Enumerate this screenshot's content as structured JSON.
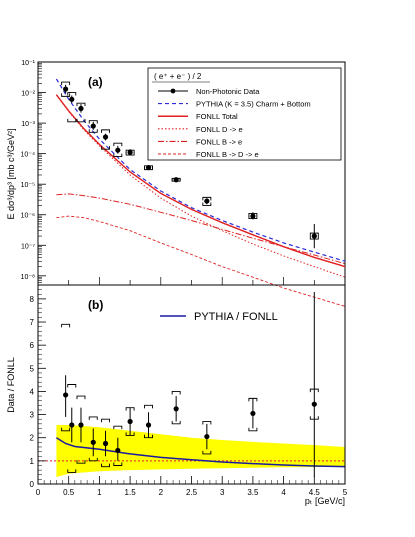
{
  "chart_data": [
    {
      "type": "scatter",
      "panel_label": "(a)",
      "ylabel": "E dσ³/dp³ [mb c³/GeV²]",
      "xlim": [
        0,
        5
      ],
      "ylim_log10": [
        -8.3,
        -1
      ],
      "y_scale": "log",
      "y_ticks": [
        "10⁻⁸",
        "10⁻⁷",
        "10⁻⁶",
        "10⁻⁵",
        "10⁻⁴",
        "10⁻³",
        "10⁻²",
        "10⁻¹"
      ],
      "legend_title": "( e⁺ + e⁻ ) / 2",
      "legend_position": "top-right",
      "legend": [
        {
          "label": "Non-Photonic Data",
          "style": "marker",
          "color": "#000000"
        },
        {
          "label": "PYTHIA (K = 3.5) Charm + Bottom",
          "style": "dashed",
          "color": "#2a2ad8"
        },
        {
          "label": "FONLL Total",
          "style": "solid",
          "color": "#e02020"
        },
        {
          "label": "FONLL D -> e",
          "style": "dotted",
          "color": "#e02020"
        },
        {
          "label": "FONLL B -> e",
          "style": "dashdot",
          "color": "#e02020"
        },
        {
          "label": "FONLL B -> D -> e",
          "style": "dashed-thin",
          "color": "#e02020"
        }
      ],
      "data_points": [
        {
          "x": 0.45,
          "y": 0.013,
          "ylo": 0.0095,
          "yhi": 0.018,
          "sys_lo": 0.0075,
          "sys_hi": 0.022
        },
        {
          "x": 0.55,
          "y": 0.006,
          "ylo": 0.0045,
          "yhi": 0.008,
          "sys_lo": 0.0011,
          "sys_hi": 0.01
        },
        {
          "x": 0.7,
          "y": 0.003,
          "ylo": 0.0022,
          "yhi": 0.0042,
          "sys_lo": 0.0011,
          "sys_hi": 0.0045
        },
        {
          "x": 0.9,
          "y": 0.0008,
          "ylo": 0.0006,
          "yhi": 0.0011,
          "sys_lo": 0.0005,
          "sys_hi": 0.0012
        },
        {
          "x": 1.1,
          "y": 0.00035,
          "ylo": 0.00027,
          "yhi": 0.00045,
          "sys_lo": 0.00014,
          "sys_hi": 0.0006
        },
        {
          "x": 1.3,
          "y": 0.00013,
          "ylo": 0.0001,
          "yhi": 0.00018,
          "sys_lo": 8e-05,
          "sys_hi": 0.00022
        },
        {
          "x": 1.5,
          "y": 0.00011,
          "ylo": 9e-05,
          "yhi": 0.00014,
          "sys_lo": 9e-05,
          "sys_hi": 0.00013
        },
        {
          "x": 1.8,
          "y": 3.5e-05,
          "ylo": 2.9e-05,
          "yhi": 4.2e-05,
          "sys_lo": 3e-05,
          "sys_hi": 4e-05
        },
        {
          "x": 2.25,
          "y": 1.4e-05,
          "ylo": 1.2e-05,
          "yhi": 1.6e-05,
          "sys_lo": 1.25e-05,
          "sys_hi": 1.55e-05
        },
        {
          "x": 2.75,
          "y": 2.8e-06,
          "ylo": 2.2e-06,
          "yhi": 3.5e-06,
          "sys_lo": 2e-06,
          "sys_hi": 3.7e-06
        },
        {
          "x": 3.5,
          "y": 9e-07,
          "ylo": 7e-07,
          "yhi": 1.2e-06,
          "sys_lo": 7.5e-07,
          "sys_hi": 1.1e-06
        },
        {
          "x": 4.5,
          "y": 2e-07,
          "ylo": 8e-08,
          "yhi": 5e-07,
          "sys_lo": 1.6e-07,
          "sys_hi": 2.5e-07
        }
      ],
      "curves": [
        {
          "name": "PYTHIA (K = 3.5) Charm + Bottom",
          "color": "#2a2ad8",
          "dash": "4,3",
          "width": 1.2,
          "x": [
            0.3,
            0.5,
            0.75,
            1,
            1.5,
            2,
            2.5,
            3,
            3.5,
            4,
            4.5,
            5
          ],
          "y": [
            0.028,
            0.006,
            0.0012,
            0.0003,
            3e-05,
            6e-06,
            1.7e-06,
            6.5e-07,
            2.7e-07,
            1.2e-07,
            6e-08,
            3e-08
          ]
        },
        {
          "name": "FONLL Total",
          "color": "#e02020",
          "dash": "",
          "width": 1.4,
          "x": [
            0.3,
            0.5,
            0.75,
            1,
            1.5,
            2,
            2.5,
            3,
            3.5,
            4,
            4.5,
            5
          ],
          "y": [
            0.0085,
            0.0025,
            0.00065,
            0.0002,
            2.5e-05,
            5e-06,
            1.5e-06,
            5.5e-07,
            2.2e-07,
            9e-08,
            4e-08,
            2e-08
          ]
        },
        {
          "name": "FONLL D -> e",
          "color": "#e02020",
          "dash": "1.5,2",
          "width": 1,
          "x": [
            0.3,
            0.5,
            0.75,
            1,
            1.5,
            2,
            2.5,
            3,
            3.5,
            4,
            4.5,
            5
          ],
          "y": [
            0.0083,
            0.0024,
            0.0006,
            0.00018,
            2e-05,
            3.5e-06,
            9e-07,
            3e-07,
            1.1e-07,
            4.5e-08,
            2e-08,
            9e-09
          ]
        },
        {
          "name": "FONLL B -> e",
          "color": "#e02020",
          "dash": "6,2,1.5,2",
          "width": 1,
          "x": [
            0.3,
            0.5,
            0.75,
            1,
            1.5,
            2,
            2.5,
            3,
            3.5,
            4,
            4.5,
            5
          ],
          "y": [
            4.5e-06,
            4.8e-06,
            4.2e-06,
            3.5e-06,
            2.2e-06,
            1.2e-06,
            6.5e-07,
            3.3e-07,
            1.7e-07,
            9e-08,
            4.8e-08,
            2.5e-08
          ]
        },
        {
          "name": "FONLL B -> D -> e",
          "color": "#e02020",
          "dash": "3,2",
          "width": 0.9,
          "x": [
            0.3,
            0.5,
            0.75,
            1,
            1.5,
            2,
            2.5,
            3,
            3.5,
            4,
            4.5,
            5
          ],
          "y": [
            8e-07,
            9e-07,
            8e-07,
            6e-07,
            3e-07,
            1.2e-07,
            5e-08,
            2e-08,
            9e-09,
            4e-09,
            2e-09,
            1e-09
          ]
        }
      ]
    },
    {
      "type": "scatter",
      "panel_label": "(b)",
      "xlabel": "pₜ [GeV/c]",
      "ylabel": "Data / FONLL",
      "xlim": [
        0,
        5
      ],
      "ylim": [
        0,
        8.6
      ],
      "x_ticks": [
        "0",
        "0.5",
        "1",
        "1.5",
        "2",
        "2.5",
        "3",
        "3.5",
        "4",
        "4.5",
        "5"
      ],
      "y_ticks": [
        "0",
        "1",
        "2",
        "3",
        "4",
        "5",
        "6",
        "7",
        "8"
      ],
      "legend_position": "top-right",
      "legend": [
        {
          "label": "PYTHIA / FONLL",
          "style": "solid",
          "color": "#1a1aa0"
        }
      ],
      "reference_line": {
        "y": 1,
        "color": "#e02020"
      },
      "band": {
        "color": "#ffff00",
        "x": [
          0.3,
          0.5,
          1,
          1.5,
          2,
          2.5,
          3,
          3.5,
          4,
          4.5,
          5
        ],
        "ylo": [
          0.3,
          0.45,
          0.55,
          0.6,
          0.63,
          0.66,
          0.68,
          0.7,
          0.72,
          0.73,
          0.75
        ],
        "yhi": [
          2.55,
          2.55,
          2.45,
          2.3,
          2.15,
          2.0,
          1.9,
          1.82,
          1.75,
          1.68,
          1.6
        ]
      },
      "pythia_over_fonll": {
        "color": "#1a1aa0",
        "x": [
          0.3,
          0.45,
          0.6,
          1,
          1.5,
          2,
          2.5,
          3,
          3.5,
          4,
          4.5,
          5
        ],
        "y": [
          2.0,
          1.75,
          1.62,
          1.5,
          1.3,
          1.15,
          1.05,
          0.95,
          0.88,
          0.82,
          0.78,
          0.75
        ]
      },
      "data_points": [
        {
          "x": 0.45,
          "y": 3.85,
          "ylo": 2.9,
          "yhi": 4.7,
          "sys_lo": 2.3,
          "sys_hi": 6.9
        },
        {
          "x": 0.55,
          "y": 2.55,
          "ylo": 1.8,
          "yhi": 3.3,
          "sys_lo": 0.5,
          "sys_hi": 4.3
        },
        {
          "x": 0.7,
          "y": 2.55,
          "ylo": 1.8,
          "yhi": 3.3,
          "sys_lo": 0.9,
          "sys_hi": 3.8
        },
        {
          "x": 0.9,
          "y": 1.8,
          "ylo": 1.2,
          "yhi": 2.4,
          "sys_lo": 1.0,
          "sys_hi": 2.9
        },
        {
          "x": 1.1,
          "y": 1.75,
          "ylo": 1.2,
          "yhi": 2.3,
          "sys_lo": 0.75,
          "sys_hi": 2.8
        },
        {
          "x": 1.3,
          "y": 1.45,
          "ylo": 1.0,
          "yhi": 2.0,
          "sys_lo": 0.8,
          "sys_hi": 2.5
        },
        {
          "x": 1.5,
          "y": 2.7,
          "ylo": 2.1,
          "yhi": 3.3,
          "sys_lo": 2.1,
          "sys_hi": 3.3
        },
        {
          "x": 1.8,
          "y": 2.55,
          "ylo": 2.0,
          "yhi": 3.1,
          "sys_lo": 2.0,
          "sys_hi": 3.4
        },
        {
          "x": 2.25,
          "y": 3.25,
          "ylo": 2.7,
          "yhi": 3.8,
          "sys_lo": 2.6,
          "sys_hi": 4.0
        },
        {
          "x": 2.75,
          "y": 2.05,
          "ylo": 1.5,
          "yhi": 2.6,
          "sys_lo": 1.3,
          "sys_hi": 2.7
        },
        {
          "x": 3.5,
          "y": 3.05,
          "ylo": 2.4,
          "yhi": 3.7,
          "sys_lo": 2.3,
          "sys_hi": 3.7
        },
        {
          "x": 4.5,
          "y": 3.45,
          "ylo": 0.3,
          "yhi": 8.3,
          "sys_lo": 2.8,
          "sys_hi": 4.1
        }
      ]
    }
  ]
}
